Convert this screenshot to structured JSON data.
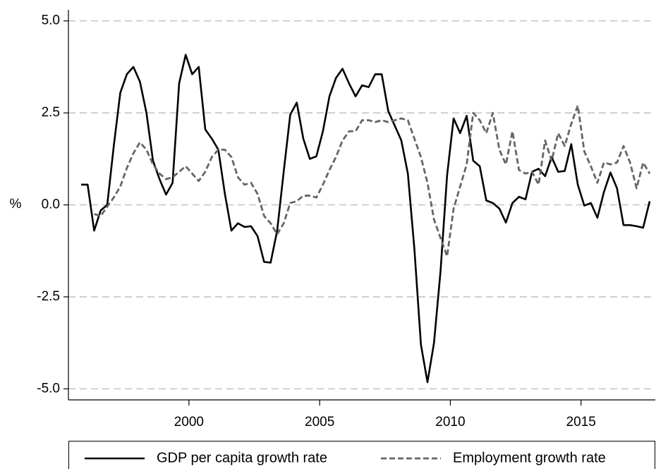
{
  "chart_data": {
    "type": "line",
    "y_label": "%",
    "x": [
      1995.875,
      1996.125,
      1996.375,
      1996.625,
      1996.875,
      1997.125,
      1997.375,
      1997.625,
      1997.875,
      1998.125,
      1998.375,
      1998.625,
      1998.875,
      1999.125,
      1999.375,
      1999.625,
      1999.875,
      2000.125,
      2000.375,
      2000.625,
      2000.875,
      2001.125,
      2001.375,
      2001.625,
      2001.875,
      2002.125,
      2002.375,
      2002.625,
      2002.875,
      2003.125,
      2003.375,
      2003.625,
      2003.875,
      2004.125,
      2004.375,
      2004.625,
      2004.875,
      2005.125,
      2005.375,
      2005.625,
      2005.875,
      2006.125,
      2006.375,
      2006.625,
      2006.875,
      2007.125,
      2007.375,
      2007.625,
      2007.875,
      2008.125,
      2008.375,
      2008.625,
      2008.875,
      2009.125,
      2009.375,
      2009.625,
      2009.875,
      2010.125,
      2010.375,
      2010.625,
      2010.875,
      2011.125,
      2011.375,
      2011.625,
      2011.875,
      2012.125,
      2012.375,
      2012.625,
      2012.875,
      2013.125,
      2013.375,
      2013.625,
      2013.875,
      2014.125,
      2014.375,
      2014.625,
      2014.875,
      2015.125,
      2015.375,
      2015.625,
      2015.875,
      2016.125,
      2016.375,
      2016.625,
      2016.875,
      2017.125,
      2017.375,
      2017.625
    ],
    "series": [
      {
        "name": "GDP per capita growth rate",
        "color": "#000000",
        "style": "solid",
        "values": [
          0.55,
          0.55,
          -0.7,
          -0.15,
          0.0,
          1.6,
          3.05,
          3.55,
          3.75,
          3.35,
          2.5,
          1.2,
          0.7,
          0.28,
          0.6,
          3.3,
          4.08,
          3.55,
          3.75,
          2.05,
          1.8,
          1.5,
          0.3,
          -0.7,
          -0.5,
          -0.6,
          -0.58,
          -0.85,
          -1.55,
          -1.57,
          -0.7,
          0.9,
          2.45,
          2.78,
          1.8,
          1.25,
          1.32,
          2.0,
          2.95,
          3.45,
          3.7,
          3.3,
          2.95,
          3.25,
          3.2,
          3.55,
          3.55,
          2.55,
          2.15,
          1.75,
          0.85,
          -1.2,
          -3.8,
          -4.82,
          -3.75,
          -1.8,
          0.8,
          2.35,
          1.95,
          2.42,
          1.2,
          1.05,
          0.12,
          0.05,
          -0.1,
          -0.48,
          0.05,
          0.22,
          0.15,
          0.9,
          0.98,
          0.78,
          1.3,
          0.9,
          0.92,
          1.65,
          0.55,
          -0.02,
          0.05,
          -0.35,
          0.35,
          0.88,
          0.45,
          -0.55,
          -0.55,
          -0.58,
          -0.62,
          0.1
        ]
      },
      {
        "name": "Employment growth rate",
        "color": "#666666",
        "style": "dashed",
        "values": [
          null,
          null,
          -0.25,
          -0.3,
          -0.05,
          0.2,
          0.5,
          1.0,
          1.4,
          1.7,
          1.5,
          1.1,
          0.85,
          0.7,
          0.75,
          0.9,
          1.05,
          0.85,
          0.65,
          0.9,
          1.3,
          1.5,
          1.5,
          1.3,
          0.75,
          0.55,
          0.6,
          0.3,
          -0.3,
          -0.5,
          -0.8,
          -0.5,
          0.05,
          0.1,
          0.25,
          0.25,
          0.2,
          0.55,
          0.95,
          1.3,
          1.75,
          2.0,
          2.0,
          2.3,
          2.3,
          2.25,
          2.3,
          2.25,
          2.3,
          2.35,
          2.3,
          1.8,
          1.3,
          0.6,
          -0.4,
          -0.9,
          -1.4,
          -0.1,
          0.5,
          1.1,
          2.5,
          2.3,
          1.95,
          2.5,
          1.5,
          1.1,
          2.0,
          0.95,
          0.85,
          0.9,
          0.55,
          1.75,
          1.2,
          1.95,
          1.6,
          2.2,
          2.7,
          1.45,
          1.05,
          0.6,
          1.15,
          1.1,
          1.15,
          1.6,
          1.15,
          0.45,
          1.15,
          0.85
        ]
      }
    ],
    "xlim": [
      1995.39,
      2017.84
    ],
    "xticks": [
      2000,
      2005,
      2010,
      2015
    ],
    "ylim": [
      -5.3,
      5.3
    ],
    "yticks": [
      {
        "value": -5,
        "label": "-5.0"
      },
      {
        "value": -2.5,
        "label": "-2.5"
      },
      {
        "value": 0,
        "label": "0.0"
      },
      {
        "value": 2.5,
        "label": "2.5"
      },
      {
        "value": 5,
        "label": "5.0"
      }
    ],
    "grid": true,
    "legend": "bottom"
  }
}
